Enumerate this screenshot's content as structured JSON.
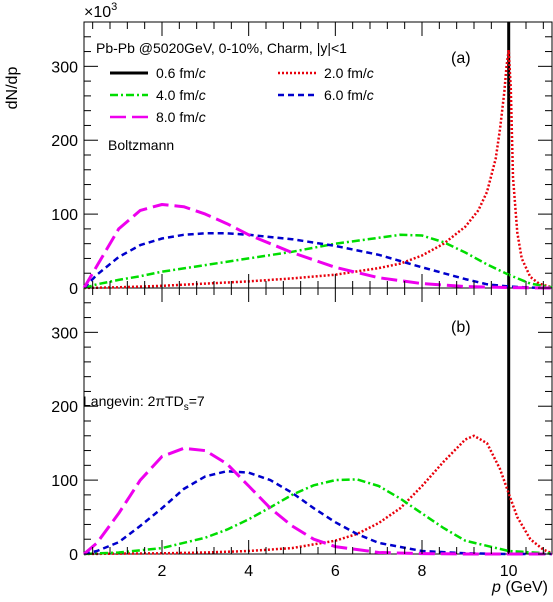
{
  "chart_data": [
    {
      "type": "line",
      "panel_label": "(a)",
      "header": "Pb-Pb @5020GeV, 0-10%, Charm, |y|<1",
      "note": "Boltzmann",
      "ylabel": "dN/dp",
      "y_multiplier": "×10",
      "y_multiplier_exp": "3",
      "xlim": [
        0.2,
        11
      ],
      "ylim": [
        0,
        360
      ],
      "yticks": [
        0,
        100,
        200,
        300
      ],
      "grid": false,
      "legend_placement": "top-left",
      "series": [
        {
          "name": "0.6 fm/c",
          "name_main": "0.6 fm/",
          "name_italic": "c",
          "color": "#000000",
          "style": "solid",
          "x": [
            10,
            10
          ],
          "y": [
            0,
            360
          ]
        },
        {
          "name": "2.0 fm/c",
          "name_main": "2.0 fm/",
          "name_italic": "c",
          "color": "#e8000b",
          "style": "dotted",
          "x": [
            0.2,
            1,
            2,
            3,
            4,
            5,
            6,
            7,
            7.5,
            8,
            8.5,
            9,
            9.3,
            9.5,
            9.7,
            9.8,
            9.9,
            9.95,
            10,
            10.05,
            10.1,
            10.2,
            10.3,
            10.5,
            10.7,
            11
          ],
          "y": [
            0,
            1,
            3,
            6,
            9,
            13,
            18,
            27,
            33,
            44,
            60,
            83,
            105,
            130,
            175,
            215,
            265,
            300,
            322,
            270,
            150,
            75,
            40,
            15,
            6,
            1
          ]
        },
        {
          "name": "4.0 fm/c",
          "name_main": "4.0 fm/",
          "name_italic": "c",
          "color": "#00dd00",
          "style": "dashdot",
          "x": [
            0.2,
            0.5,
            1,
            1.5,
            2,
            3,
            4,
            5,
            6,
            7,
            7.5,
            8,
            8.5,
            9,
            9.5,
            10,
            10.5,
            11
          ],
          "y": [
            0,
            5,
            11,
            16,
            22,
            31,
            40,
            49,
            60,
            68,
            72,
            71,
            62,
            48,
            32,
            18,
            6,
            1
          ]
        },
        {
          "name": "6.0 fm/c",
          "name_main": "6.0 fm/",
          "name_italic": "c",
          "color": "#0000cc",
          "style": "dashed",
          "x": [
            0.2,
            0.5,
            1,
            1.5,
            2,
            2.5,
            3,
            3.5,
            4,
            5,
            6,
            7,
            8,
            9,
            9.5,
            10,
            10.5,
            11
          ],
          "y": [
            0,
            18,
            42,
            58,
            67,
            72,
            74,
            74,
            72,
            66,
            57,
            45,
            28,
            12,
            5,
            2,
            0.5,
            0
          ]
        },
        {
          "name": "8.0 fm/c",
          "name_main": "8.0 fm/",
          "name_italic": "c",
          "color": "#ee00ee",
          "style": "longdash",
          "x": [
            0.2,
            0.5,
            1,
            1.5,
            2,
            2.5,
            3,
            3.5,
            4,
            5,
            6,
            7,
            8,
            9,
            10,
            11
          ],
          "y": [
            0,
            30,
            80,
            105,
            113,
            110,
            100,
            87,
            72,
            48,
            28,
            14,
            6,
            2,
            0.5,
            0
          ]
        }
      ]
    },
    {
      "type": "line",
      "panel_label": "(b)",
      "note_parts": [
        "Langevin: 2πTD",
        "s",
        "=7"
      ],
      "xlabel_italic": "p",
      "xlabel_rest": " (GeV)",
      "xlim": [
        0.2,
        11
      ],
      "ylim": [
        0,
        360
      ],
      "xticks": [
        2,
        4,
        6,
        8,
        10
      ],
      "yticks": [
        0,
        100,
        200,
        300
      ],
      "grid": false,
      "series": [
        {
          "name": "0.6 fm/c",
          "color": "#000000",
          "style": "solid",
          "x": [
            10,
            10
          ],
          "y": [
            0,
            360
          ]
        },
        {
          "name": "2.0 fm/c",
          "color": "#e8000b",
          "style": "dotted",
          "x": [
            0.2,
            1,
            2,
            3,
            4,
            5,
            6,
            6.5,
            7,
            7.5,
            8,
            8.5,
            9,
            9.2,
            9.5,
            9.8,
            10,
            10.2,
            10.5,
            10.8,
            11
          ],
          "y": [
            0,
            0.5,
            1,
            2,
            4,
            8,
            18,
            27,
            42,
            62,
            92,
            125,
            155,
            160,
            150,
            115,
            82,
            50,
            20,
            6,
            1
          ]
        },
        {
          "name": "4.0 fm/c",
          "color": "#00dd00",
          "style": "dashdot",
          "x": [
            0.2,
            1,
            2,
            3,
            3.5,
            4,
            4.5,
            5,
            5.5,
            6,
            6.5,
            7,
            7.5,
            8,
            8.5,
            9,
            10,
            11
          ],
          "y": [
            0,
            2,
            8,
            22,
            33,
            47,
            63,
            80,
            93,
            100,
            101,
            92,
            75,
            55,
            35,
            18,
            4,
            0.5
          ]
        },
        {
          "name": "6.0 fm/c",
          "color": "#0000cc",
          "style": "dashed",
          "x": [
            0.2,
            0.5,
            1,
            1.5,
            2,
            2.5,
            3,
            3.5,
            4,
            4.5,
            5,
            5.5,
            6,
            6.5,
            7,
            8,
            9,
            10,
            11
          ],
          "y": [
            0,
            4,
            16,
            38,
            62,
            88,
            105,
            112,
            110,
            100,
            83,
            62,
            43,
            27,
            15,
            4,
            1,
            0,
            0
          ]
        },
        {
          "name": "8.0 fm/c",
          "color": "#ee00ee",
          "style": "longdash",
          "x": [
            0.2,
            0.5,
            1,
            1.5,
            2,
            2.5,
            3,
            3.5,
            4,
            4.5,
            5,
            5.5,
            6,
            7,
            8,
            9,
            11
          ],
          "y": [
            0,
            15,
            55,
            100,
            132,
            143,
            140,
            122,
            92,
            62,
            38,
            20,
            10,
            2,
            0.5,
            0,
            0
          ]
        }
      ]
    }
  ]
}
